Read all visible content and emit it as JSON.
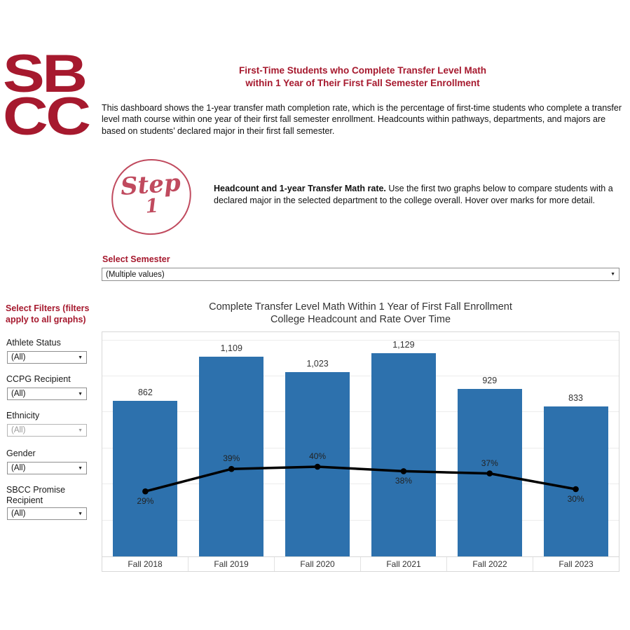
{
  "brand": {
    "logo_line1": "SB",
    "logo_line2": "CC"
  },
  "colors": {
    "brand_red": "#A6192E",
    "step_rose": "#C04A5E",
    "bar_blue": "#2D71AD",
    "line_black": "#000000"
  },
  "icons": {
    "dropdown_arrow": "▼"
  },
  "header": {
    "title_line1": "First-Time Students who Complete Transfer Level Math",
    "title_line2": "within 1 Year of Their First Fall Semester Enrollment",
    "description": "This dashboard shows the 1-year transfer math completion rate, which is the percentage of first-time students who complete a transfer level math course within one year of their first fall semester enrollment. Headcounts within pathways, departments, and majors are based on students’ declared major in their first fall semester."
  },
  "step": {
    "label_word": "Step",
    "label_number": "1",
    "bold_text": "Headcount and 1-year Transfer Math rate.",
    "body_text": " Use the first two graphs below to compare students with a declared major in the selected department to the college overall. Hover over marks for more detail."
  },
  "semester_filter": {
    "label": "Select Semester",
    "value": "(Multiple values)"
  },
  "sidebar": {
    "heading": "Select Filters (filters apply to all graphs)",
    "filters": [
      {
        "label": "Athlete Status",
        "value": "(All)",
        "muted": false
      },
      {
        "label": "CCPG Recipient",
        "value": "(All)",
        "muted": false
      },
      {
        "label": "Ethnicity",
        "value": "(All)",
        "muted": true
      },
      {
        "label": "Gender",
        "value": "(All)",
        "muted": false
      },
      {
        "label": "SBCC Promise Recipient",
        "value": "(All)",
        "muted": false
      }
    ]
  },
  "chart_data": {
    "type": "bar",
    "subtype": "bar+line combo",
    "title_line1": "Complete Transfer Level Math Within 1 Year of First Fall Enrollment",
    "title_line2": "College Headcount and Rate Over Time",
    "categories": [
      "Fall 2018",
      "Fall 2019",
      "Fall 2020",
      "Fall 2021",
      "Fall 2022",
      "Fall 2023"
    ],
    "series": [
      {
        "name": "College Headcount",
        "type": "bar",
        "color": "#2D71AD",
        "values": [
          862,
          1109,
          1023,
          1129,
          929,
          833
        ],
        "labels": [
          "862",
          "1,109",
          "1,023",
          "1,129",
          "929",
          "833"
        ]
      },
      {
        "name": "1-year Transfer Math Completion Rate",
        "type": "line",
        "color": "#000000",
        "values": [
          29,
          39,
          40,
          38,
          37,
          30
        ],
        "labels": [
          "29%",
          "39%",
          "40%",
          "38%",
          "37%",
          "30%"
        ],
        "label_positions": [
          "below",
          "above",
          "above",
          "below",
          "above",
          "below"
        ]
      }
    ],
    "bar_axis_max": 1245,
    "pct_axis_range": [
      0,
      100
    ],
    "gridline_step": 200,
    "grid": "horizontal-faint",
    "legend": "none",
    "xlabel": "",
    "ylabel": ""
  }
}
